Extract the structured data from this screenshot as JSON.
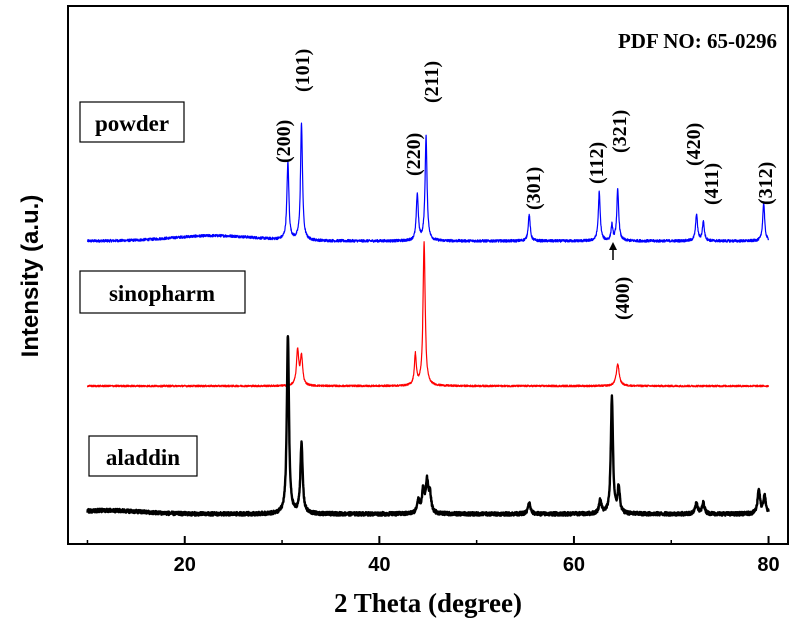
{
  "chart_data": {
    "type": "line",
    "title": "",
    "xlabel": "2 Theta (degree)",
    "ylabel": "Intensity (a.u.)",
    "xlim": [
      8,
      82
    ],
    "x_ticks": [
      20,
      40,
      60,
      80
    ],
    "x_tick_labels": [
      "20",
      "40",
      "60",
      "80"
    ],
    "y_ticks_shown": false,
    "grid": false,
    "annotation": "PDF NO: 65-0296",
    "series": [
      {
        "name": "powder",
        "color": "#0000ff",
        "baseline": 0,
        "noise": 0.003,
        "broad_hump": {
          "center": 23,
          "width": 6,
          "height": 0.012
        },
        "peaks": [
          {
            "x": 30.6,
            "h": 0.175,
            "w": 0.12
          },
          {
            "x": 32.0,
            "h": 0.265,
            "w": 0.12
          },
          {
            "x": 43.9,
            "h": 0.105,
            "w": 0.12
          },
          {
            "x": 44.8,
            "h": 0.24,
            "w": 0.12
          },
          {
            "x": 55.4,
            "h": 0.06,
            "w": 0.12
          },
          {
            "x": 62.6,
            "h": 0.11,
            "w": 0.12
          },
          {
            "x": 63.9,
            "h": 0.035,
            "w": 0.1
          },
          {
            "x": 64.5,
            "h": 0.115,
            "w": 0.12
          },
          {
            "x": 72.6,
            "h": 0.061,
            "w": 0.12
          },
          {
            "x": 73.3,
            "h": 0.044,
            "w": 0.12
          },
          {
            "x": 79.5,
            "h": 0.087,
            "w": 0.12
          }
        ]
      },
      {
        "name": "sinopharm",
        "color": "#ff0000",
        "baseline": 0,
        "noise": 0.002,
        "peaks": [
          {
            "x": 31.6,
            "h": 0.08,
            "w": 0.14
          },
          {
            "x": 32.0,
            "h": 0.065,
            "w": 0.14
          },
          {
            "x": 43.7,
            "h": 0.07,
            "w": 0.12
          },
          {
            "x": 44.6,
            "h": 0.325,
            "w": 0.13
          },
          {
            "x": 64.5,
            "h": 0.05,
            "w": 0.18
          }
        ]
      },
      {
        "name": "aladdin",
        "color": "#000000",
        "baseline": 0,
        "noise": 0.004,
        "broad_hump": {
          "center": 12,
          "width": 5,
          "height": 0.008
        },
        "peaks": [
          {
            "x": 30.6,
            "h": 0.405,
            "w": 0.13
          },
          {
            "x": 32.0,
            "h": 0.158,
            "w": 0.14
          },
          {
            "x": 44.0,
            "h": 0.03,
            "w": 0.15
          },
          {
            "x": 44.5,
            "h": 0.05,
            "w": 0.15
          },
          {
            "x": 44.9,
            "h": 0.07,
            "w": 0.15
          },
          {
            "x": 45.2,
            "h": 0.04,
            "w": 0.15
          },
          {
            "x": 55.4,
            "h": 0.025,
            "w": 0.15
          },
          {
            "x": 62.7,
            "h": 0.03,
            "w": 0.15
          },
          {
            "x": 63.9,
            "h": 0.265,
            "w": 0.13
          },
          {
            "x": 64.6,
            "h": 0.06,
            "w": 0.13
          },
          {
            "x": 72.6,
            "h": 0.025,
            "w": 0.15
          },
          {
            "x": 73.3,
            "h": 0.025,
            "w": 0.15
          },
          {
            "x": 79.0,
            "h": 0.055,
            "w": 0.15
          },
          {
            "x": 79.6,
            "h": 0.04,
            "w": 0.15
          }
        ]
      }
    ],
    "peak_labels": [
      {
        "text": "(200)",
        "x": 30.6
      },
      {
        "text": "(101)",
        "x": 32.0
      },
      {
        "text": "(220)",
        "x": 43.9
      },
      {
        "text": "(211)",
        "x": 44.8
      },
      {
        "text": "(301)",
        "x": 55.4
      },
      {
        "text": "(112)",
        "x": 62.6
      },
      {
        "text": "(321)",
        "x": 64.5
      },
      {
        "text": "(420)",
        "x": 72.6
      },
      {
        "text": "(411)",
        "x": 73.3
      },
      {
        "text": "(312)",
        "x": 79.5
      },
      {
        "text": "(400)",
        "x": 63.9
      }
    ]
  }
}
